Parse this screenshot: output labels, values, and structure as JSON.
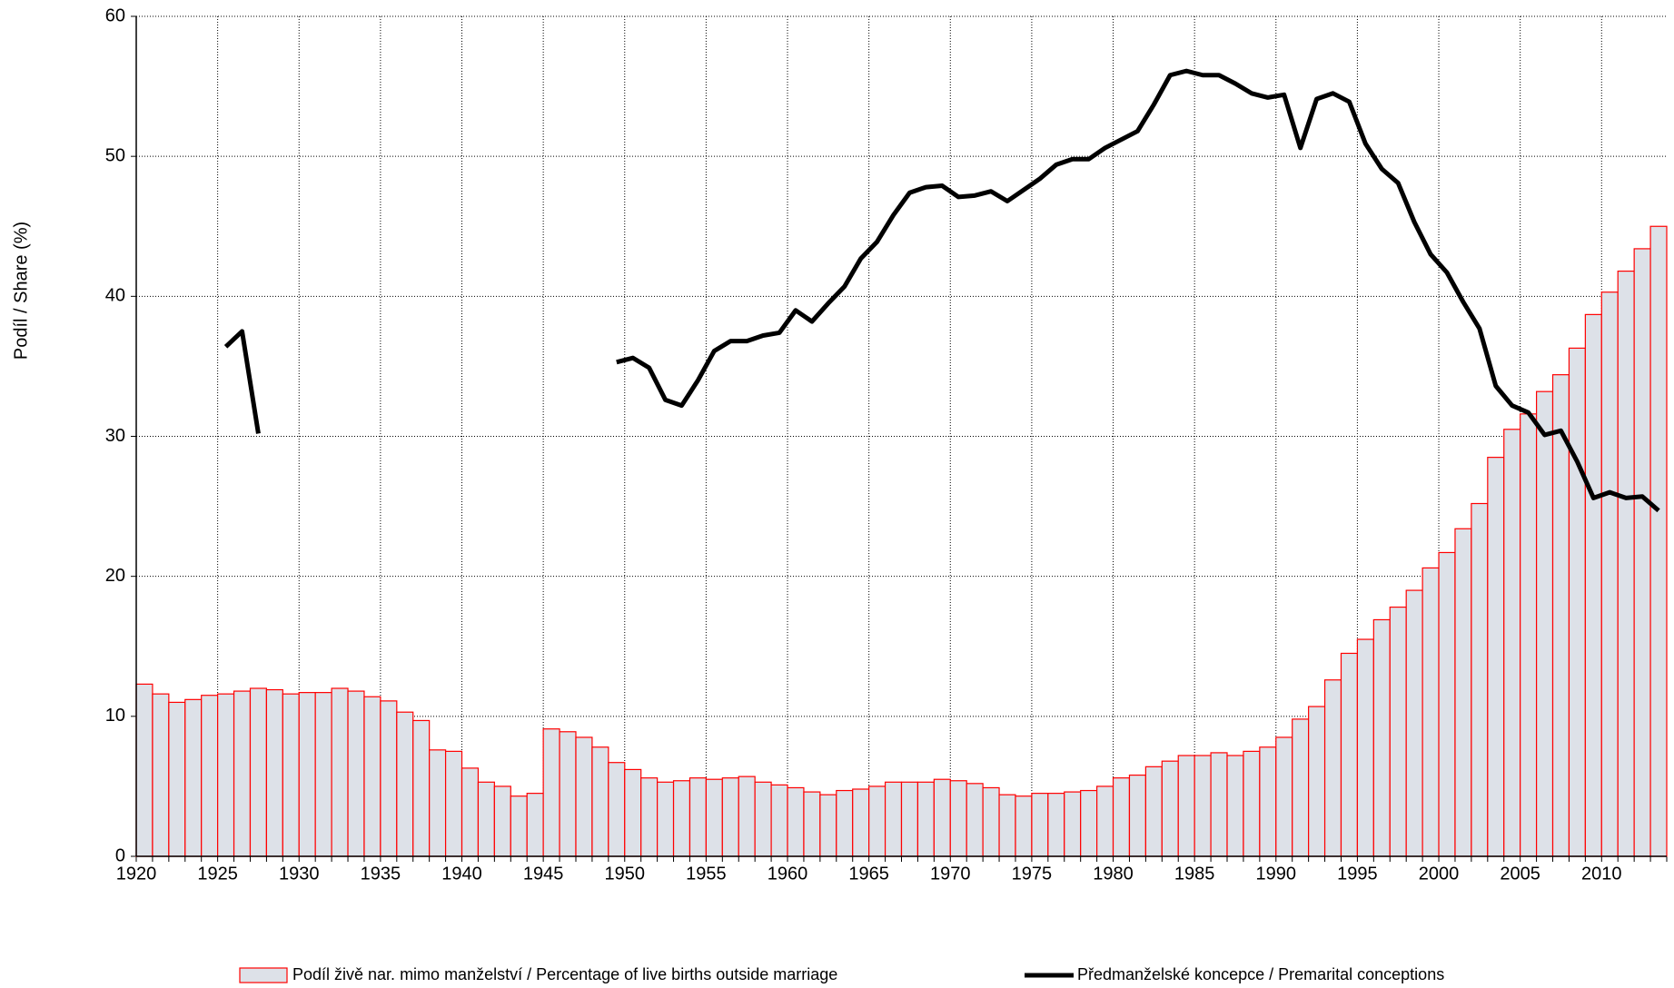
{
  "chart_data": {
    "type": "combo",
    "ylabel": "Podíl / Share (%)",
    "categories": [
      "1920",
      null,
      null,
      null,
      null,
      "1925",
      null,
      null,
      null,
      null,
      "1930",
      null,
      null,
      null,
      null,
      "1935",
      null,
      null,
      null,
      null,
      "1940",
      null,
      null,
      null,
      null,
      "1945",
      null,
      null,
      null,
      null,
      "1950",
      null,
      null,
      null,
      null,
      "1955",
      null,
      null,
      null,
      null,
      "1960",
      null,
      null,
      null,
      null,
      "1965",
      null,
      null,
      null,
      null,
      "1970",
      null,
      null,
      null,
      null,
      "1975",
      null,
      null,
      null,
      null,
      "1980",
      null,
      null,
      null,
      null,
      "1985",
      null,
      null,
      null,
      null,
      "1990",
      null,
      null,
      null,
      null,
      "1995",
      null,
      null,
      null,
      null,
      "2000",
      null,
      null,
      null,
      null,
      "2005",
      null,
      null,
      null,
      null,
      "2010",
      null,
      null,
      null
    ],
    "ylim": [
      0,
      60
    ],
    "yticks": [
      0,
      10,
      20,
      30,
      40,
      50,
      60
    ],
    "grid": true,
    "series": [
      {
        "name": "Podíl živě nar. mimo manželství / Percentage of live births outside marriage",
        "type": "bar",
        "color": "#dde1e8",
        "edgecolor": "#ff0000",
        "values": [
          12.3,
          11.6,
          11.0,
          11.2,
          11.5,
          11.6,
          11.8,
          12.0,
          11.9,
          11.6,
          11.7,
          11.7,
          12.0,
          11.8,
          11.4,
          11.1,
          10.3,
          9.7,
          7.6,
          7.5,
          6.3,
          5.3,
          5.0,
          4.3,
          4.5,
          9.1,
          8.9,
          8.5,
          7.8,
          6.7,
          6.2,
          5.6,
          5.3,
          5.4,
          5.6,
          5.5,
          5.6,
          5.7,
          5.3,
          5.1,
          4.9,
          4.6,
          4.4,
          4.7,
          4.8,
          5.0,
          5.3,
          5.3,
          5.3,
          5.5,
          5.4,
          5.2,
          4.9,
          4.4,
          4.3,
          4.5,
          4.5,
          4.6,
          4.7,
          5.0,
          5.6,
          5.8,
          6.4,
          6.8,
          7.2,
          7.2,
          7.4,
          7.2,
          7.5,
          7.8,
          8.5,
          9.8,
          10.7,
          12.6,
          14.5,
          15.5,
          16.9,
          17.8,
          19.0,
          20.6,
          21.7,
          23.4,
          25.2,
          28.5,
          30.5,
          31.6,
          33.2,
          34.4,
          36.3,
          38.7,
          40.3,
          41.8,
          43.4,
          45.0
        ]
      },
      {
        "name": "Předmanželské koncepce / Premarital conceptions",
        "type": "line",
        "color": "#000000",
        "values": [
          null,
          null,
          null,
          null,
          null,
          36.4,
          37.5,
          30.2,
          null,
          null,
          null,
          null,
          null,
          null,
          null,
          null,
          null,
          null,
          null,
          null,
          null,
          null,
          null,
          null,
          null,
          null,
          null,
          null,
          null,
          35.3,
          35.6,
          34.9,
          32.6,
          32.2,
          34.0,
          36.1,
          36.8,
          36.8,
          37.2,
          37.4,
          39.0,
          38.2,
          39.5,
          40.7,
          42.7,
          43.9,
          45.8,
          47.4,
          47.8,
          47.9,
          47.1,
          47.2,
          47.5,
          46.8,
          47.6,
          48.4,
          49.4,
          49.8,
          49.8,
          50.6,
          51.2,
          51.8,
          53.7,
          55.8,
          56.1,
          55.8,
          55.8,
          55.2,
          54.5,
          54.2,
          54.4,
          50.6,
          54.1,
          54.5,
          53.9,
          50.9,
          49.1,
          48.1,
          45.3,
          43.0,
          41.7,
          39.6,
          37.7,
          33.6,
          32.2,
          31.7,
          30.1,
          30.4,
          28.2,
          25.6,
          26.0,
          25.6,
          25.7,
          24.7
        ]
      }
    ]
  }
}
